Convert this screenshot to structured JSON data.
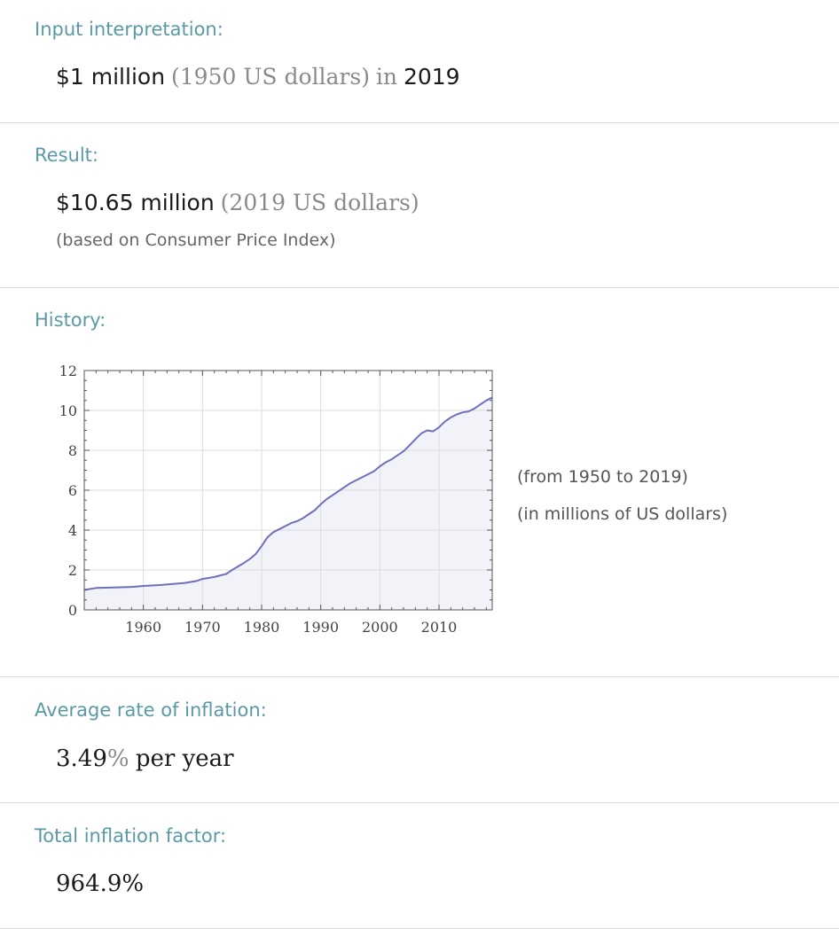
{
  "input_interpretation": {
    "title": "Input interpretation:",
    "amount": "$1 million",
    "unit": "(1950 US dollars)",
    "connector": "in",
    "year": "2019"
  },
  "result": {
    "title": "Result:",
    "amount": "$10.65 million",
    "unit": "(2019 US dollars)",
    "note": "(based on Consumer Price Index)"
  },
  "history": {
    "title": "History:",
    "range_note": "(from 1950 to 2019)",
    "unit_note": "(in millions of US dollars)"
  },
  "average_rate": {
    "title": "Average rate of inflation:",
    "value": "3.49",
    "percent": "%",
    "suffix": "per year"
  },
  "total_factor": {
    "title": "Total inflation factor:",
    "value": "964.9%"
  },
  "colors": {
    "title": "#5a9aa6",
    "line": "#6f6fbf",
    "fill": "#f2f2f9",
    "grid": "#dcdcdc"
  },
  "chart_data": {
    "type": "area",
    "x": [
      1950,
      1952,
      1955,
      1958,
      1960,
      1963,
      1965,
      1967,
      1969,
      1970,
      1972,
      1974,
      1975,
      1977,
      1978,
      1979,
      1980,
      1981,
      1982,
      1984,
      1985,
      1986,
      1987,
      1988,
      1989,
      1990,
      1991,
      1993,
      1995,
      1997,
      1998,
      1999,
      2000,
      2001,
      2002,
      2003,
      2004,
      2005,
      2006,
      2007,
      2008,
      2009,
      2010,
      2011,
      2012,
      2013,
      2014,
      2015,
      2016,
      2017,
      2018,
      2019
    ],
    "series": [
      {
        "values": [
          1.0,
          1.1,
          1.12,
          1.15,
          1.2,
          1.25,
          1.3,
          1.35,
          1.45,
          1.55,
          1.65,
          1.8,
          2.0,
          2.35,
          2.55,
          2.8,
          3.2,
          3.65,
          3.9,
          4.2,
          4.35,
          4.45,
          4.6,
          4.8,
          5.0,
          5.3,
          5.55,
          5.95,
          6.35,
          6.65,
          6.8,
          6.95,
          7.2,
          7.4,
          7.55,
          7.75,
          7.95,
          8.25,
          8.55,
          8.85,
          9.0,
          8.95,
          9.15,
          9.45,
          9.65,
          9.8,
          9.9,
          9.95,
          10.1,
          10.3,
          10.5,
          10.65
        ]
      }
    ],
    "xlim": [
      1950,
      2019
    ],
    "ylim": [
      0,
      12
    ],
    "xticks": [
      1960,
      1970,
      1980,
      1990,
      2000,
      2010
    ],
    "yticks": [
      0,
      2,
      4,
      6,
      8,
      10,
      12
    ],
    "grid": true,
    "xlabel": "",
    "ylabel": ""
  }
}
